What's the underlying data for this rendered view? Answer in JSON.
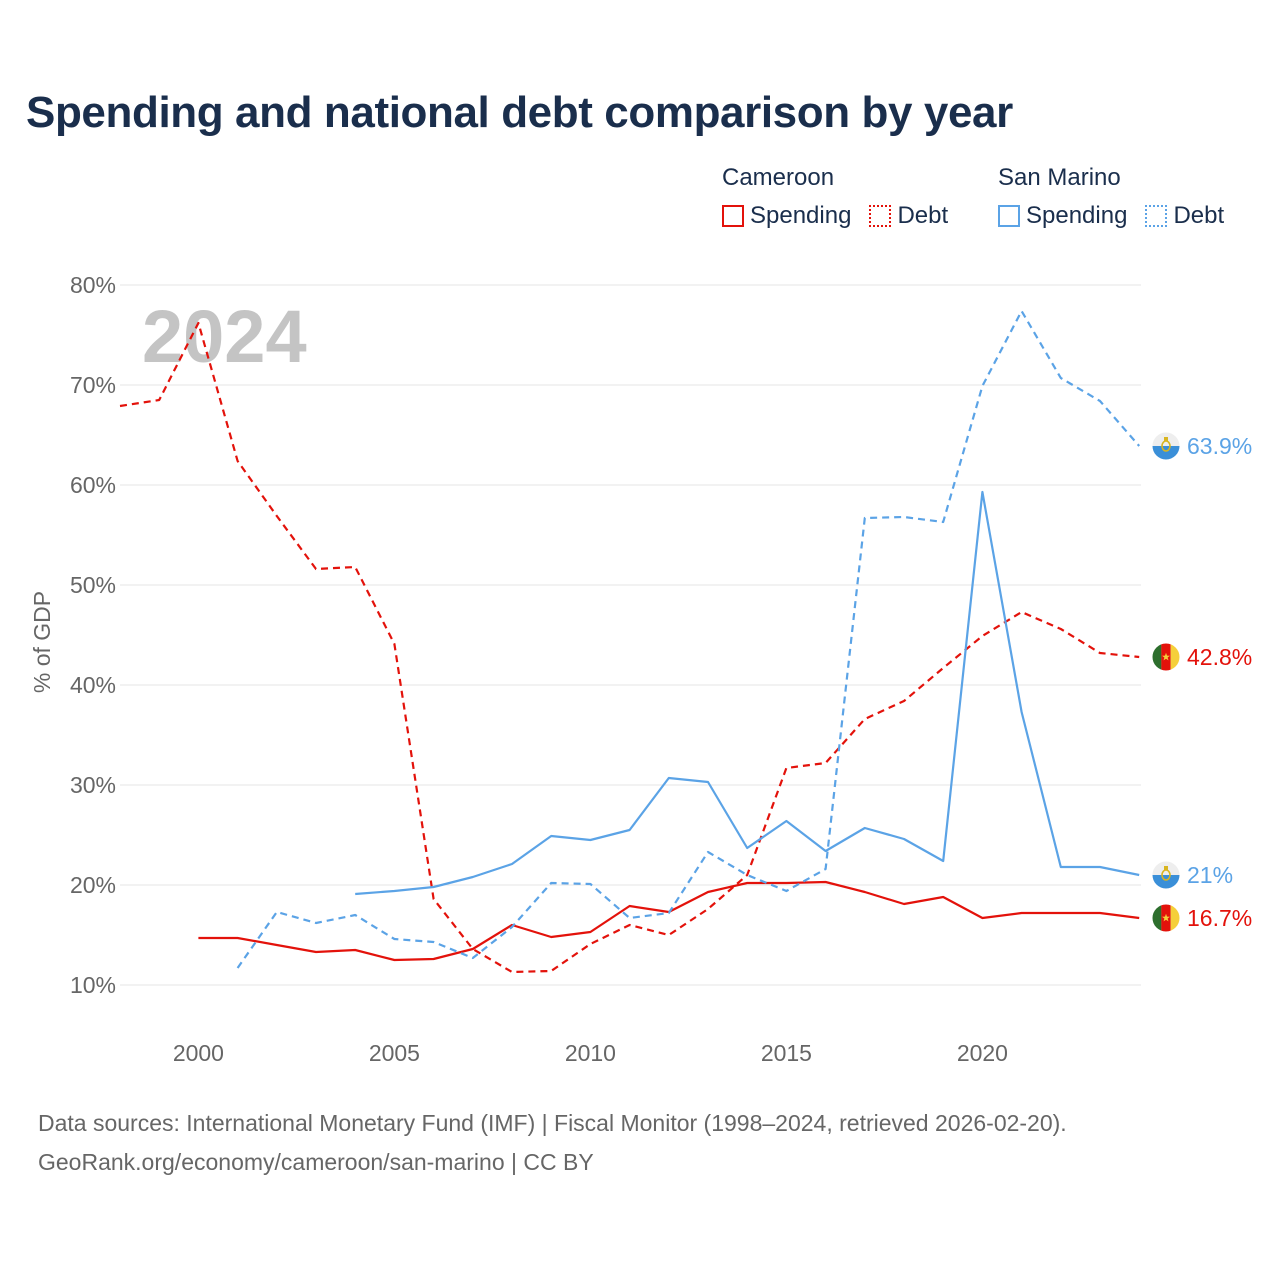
{
  "title": "Spending and national debt comparison by year",
  "legend": {
    "groups": [
      {
        "name": "Cameroon",
        "color": "#e3120b",
        "items": [
          "Spending",
          "Debt"
        ]
      },
      {
        "name": "San Marino",
        "color": "#5ba3e6",
        "items": [
          "Spending",
          "Debt"
        ]
      }
    ]
  },
  "footer": {
    "line1": "Data sources: International Monetary Fund (IMF) | Fiscal Monitor (1998–2024, retrieved 2026-02-20).",
    "line2": "GeoRank.org/economy/cameroon/san-marino | CC BY"
  },
  "chart_data": {
    "type": "line",
    "title": "Spending and national debt comparison by year",
    "ylabel": "% of GDP",
    "xlabel": "",
    "xlim": [
      1998,
      2024
    ],
    "ylim": [
      5,
      80
    ],
    "yticks": [
      10,
      20,
      30,
      40,
      50,
      60,
      70,
      80
    ],
    "ytick_labels": [
      "10%",
      "20%",
      "30%",
      "40%",
      "50%",
      "60%",
      "70%",
      "80%"
    ],
    "xticks": [
      2000,
      2005,
      2010,
      2015,
      2020
    ],
    "xtick_labels": [
      "2000",
      "2005",
      "2010",
      "2015",
      "2020"
    ],
    "watermark_year": "2024",
    "series": [
      {
        "name": "Cameroon Spending",
        "country": "Cameroon",
        "metric": "Spending",
        "color": "#e3120b",
        "dash": "solid",
        "flag": "cameroon",
        "end_label": "16.7%",
        "x": [
          2000,
          2001,
          2002,
          2003,
          2004,
          2005,
          2006,
          2007,
          2008,
          2009,
          2010,
          2011,
          2012,
          2013,
          2014,
          2015,
          2016,
          2017,
          2018,
          2019,
          2020,
          2021,
          2022,
          2023,
          2024
        ],
        "values": [
          14.7,
          14.7,
          14.0,
          13.3,
          13.5,
          12.5,
          12.6,
          13.6,
          16.0,
          14.8,
          15.3,
          17.9,
          17.3,
          19.3,
          20.2,
          20.2,
          20.3,
          19.3,
          18.1,
          18.8,
          16.7,
          17.2,
          17.2,
          17.2,
          16.7
        ]
      },
      {
        "name": "Cameroon Debt",
        "country": "Cameroon",
        "metric": "Debt",
        "color": "#e3120b",
        "dash": "dashed",
        "flag": "cameroon",
        "end_label": "42.8%",
        "x": [
          1998,
          1999,
          2000,
          2001,
          2002,
          2003,
          2004,
          2005,
          2006,
          2007,
          2008,
          2009,
          2010,
          2011,
          2012,
          2013,
          2014,
          2015,
          2016,
          2017,
          2018,
          2019,
          2020,
          2021,
          2022,
          2023,
          2024
        ],
        "values": [
          67.9,
          68.5,
          76.2,
          62.4,
          56.9,
          51.6,
          51.8,
          44.1,
          18.6,
          13.6,
          11.3,
          11.4,
          14.1,
          16.0,
          15.0,
          17.6,
          21.0,
          31.7,
          32.2,
          36.6,
          38.4,
          41.7,
          44.9,
          47.3,
          45.6,
          43.2,
          42.8
        ]
      },
      {
        "name": "San Marino Spending",
        "country": "San Marino",
        "metric": "Spending",
        "color": "#5ba3e6",
        "dash": "solid",
        "flag": "san-marino",
        "end_label": "21%",
        "x": [
          2004,
          2005,
          2006,
          2007,
          2008,
          2009,
          2010,
          2011,
          2012,
          2013,
          2014,
          2015,
          2016,
          2017,
          2018,
          2019,
          2020,
          2021,
          2022,
          2023,
          2024
        ],
        "values": [
          19.1,
          19.4,
          19.8,
          20.8,
          22.1,
          24.9,
          24.5,
          25.5,
          30.7,
          30.3,
          23.7,
          26.4,
          23.4,
          25.7,
          24.6,
          22.4,
          59.3,
          37.3,
          21.8,
          21.8,
          21.0
        ]
      },
      {
        "name": "San Marino Debt",
        "country": "San Marino",
        "metric": "Debt",
        "color": "#5ba3e6",
        "dash": "dashed",
        "flag": "san-marino",
        "end_label": "63.9%",
        "x": [
          2001,
          2002,
          2003,
          2004,
          2005,
          2006,
          2007,
          2008,
          2009,
          2010,
          2011,
          2012,
          2013,
          2014,
          2015,
          2016,
          2017,
          2018,
          2019,
          2020,
          2021,
          2022,
          2023,
          2024
        ],
        "values": [
          11.7,
          17.3,
          16.2,
          17.0,
          14.6,
          14.3,
          12.7,
          15.8,
          20.2,
          20.1,
          16.7,
          17.2,
          23.3,
          21.0,
          19.4,
          21.6,
          56.7,
          56.8,
          56.3,
          69.9,
          77.4,
          70.7,
          68.4,
          63.9
        ]
      }
    ]
  }
}
